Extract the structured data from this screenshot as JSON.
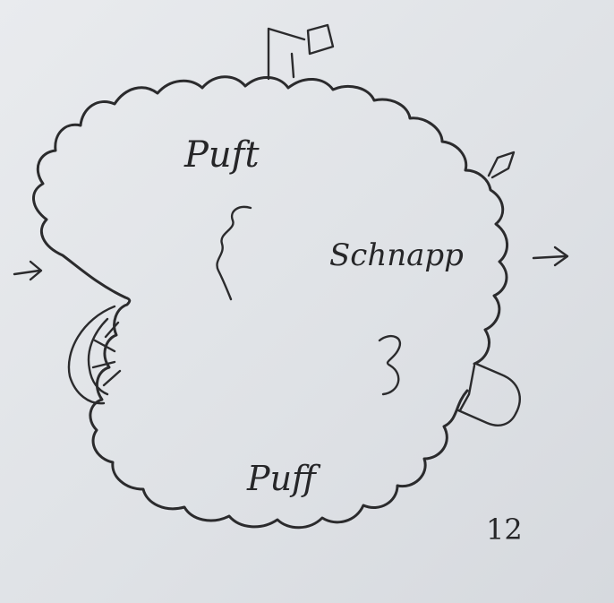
{
  "sketch": {
    "labels": {
      "puff_top": "Puft",
      "schnapp": "Schnapp",
      "puff_bottom": "Puff",
      "page_number": "12"
    },
    "marks": [
      "squiggle",
      "3"
    ],
    "icons": [
      "flag-icon",
      "arrow-right-icon",
      "arrow-right-icon",
      "chimney-icon",
      "bump-icon",
      "door-icon"
    ]
  }
}
